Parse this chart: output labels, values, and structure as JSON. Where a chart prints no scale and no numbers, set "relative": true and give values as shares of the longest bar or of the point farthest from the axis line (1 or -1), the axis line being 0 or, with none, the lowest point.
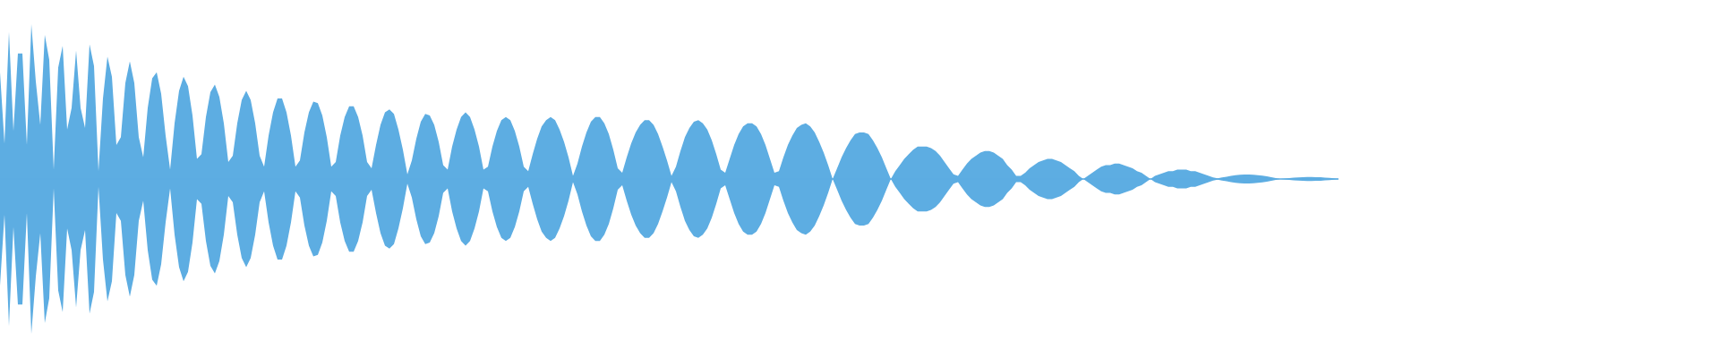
{
  "chart_data": {
    "type": "area",
    "relative": true,
    "ref_lines": [
      {
        "axis": "y",
        "value": 0,
        "color": "#5dade2"
      }
    ],
    "categories": [
      null,
      null,
      null,
      null,
      null,
      null,
      null,
      null,
      null,
      null,
      null,
      null,
      null,
      null,
      null,
      null,
      null,
      null,
      null,
      null,
      null,
      null,
      null,
      null,
      null,
      null,
      null,
      null,
      null,
      null,
      null,
      null,
      null,
      null,
      null,
      null,
      null,
      null,
      null,
      null,
      null,
      null,
      null,
      null,
      null,
      null,
      null,
      null,
      null,
      null,
      null,
      null,
      null,
      null,
      null,
      null,
      null,
      null,
      null,
      null,
      null,
      null,
      null,
      null,
      null,
      null,
      null,
      null,
      null,
      null,
      null,
      null,
      null,
      null,
      null,
      null,
      null,
      null,
      null,
      null,
      null,
      null,
      null,
      null,
      null,
      null,
      null,
      null,
      null,
      null,
      null,
      null,
      null,
      null,
      null,
      null,
      null,
      null,
      null,
      null,
      null,
      null,
      null,
      null,
      null,
      null,
      null,
      null,
      null,
      null,
      null,
      null,
      null,
      null,
      null,
      null,
      null,
      null,
      null,
      null,
      null,
      null,
      null,
      null,
      null,
      null,
      null,
      null,
      null,
      null,
      null,
      null,
      null,
      null,
      null,
      null,
      null,
      null,
      null,
      null,
      null,
      null,
      null,
      null,
      null,
      null,
      null,
      null,
      null,
      null,
      null,
      null,
      null,
      null,
      null,
      null,
      null,
      null,
      null,
      null,
      null,
      null,
      null,
      null,
      null,
      null,
      null,
      null,
      null,
      null,
      null,
      null,
      null,
      null,
      null,
      null,
      null,
      null,
      null,
      null,
      null,
      null,
      null,
      null,
      null,
      null,
      null,
      null,
      null,
      null,
      null,
      null,
      null,
      null,
      null,
      null,
      null,
      null,
      null,
      null,
      null,
      null,
      null,
      null,
      null,
      null,
      null,
      null,
      null,
      null,
      null,
      null,
      null,
      null,
      null,
      null,
      null,
      null,
      null,
      null,
      null,
      null,
      null,
      null,
      null,
      null,
      null,
      null,
      null,
      null,
      null,
      null,
      null,
      null,
      null,
      null,
      null,
      null,
      null,
      null,
      null,
      null,
      null,
      null,
      null,
      null,
      null,
      null,
      null,
      null,
      null,
      null,
      null,
      null,
      null,
      null,
      null,
      null,
      null,
      null,
      null,
      null,
      null,
      null,
      null,
      null,
      null,
      null,
      null,
      null,
      null,
      null,
      null,
      null,
      null,
      null,
      null,
      null,
      null,
      null,
      null,
      null,
      null,
      null,
      null,
      null,
      null,
      null,
      null,
      null,
      null,
      null,
      null,
      null,
      null,
      null,
      null,
      null,
      null,
      null
    ],
    "series": [
      {
        "color": "#5dade2",
        "values": [
          0.69,
          0.23,
          0.95,
          0.31,
          0.81,
          0.81,
          0.22,
          1,
          0.63,
          0.35,
          0.93,
          0.77,
          0.06,
          0.72,
          0.86,
          0.32,
          0.46,
          0.83,
          0.46,
          0.33,
          0.87,
          0.73,
          0.05,
          0.52,
          0.79,
          0.66,
          0.22,
          0.27,
          0.62,
          0.76,
          0.62,
          0.27,
          0.14,
          0.46,
          0.65,
          0.69,
          0.55,
          0.28,
          0.06,
          0.36,
          0.57,
          0.66,
          0.6,
          0.41,
          0.13,
          0.16,
          0.4,
          0.56,
          0.61,
          0.53,
          0.36,
          0.11,
          0.15,
          0.36,
          0.51,
          0.57,
          0.51,
          0.36,
          0.15,
          0.08,
          0.28,
          0.43,
          0.52,
          0.52,
          0.43,
          0.28,
          0.08,
          0.12,
          0.3,
          0.43,
          0.5,
          0.49,
          0.41,
          0.27,
          0.08,
          0.11,
          0.28,
          0.4,
          0.47,
          0.47,
          0.4,
          0.28,
          0.11,
          0.07,
          0.22,
          0.35,
          0.43,
          0.45,
          0.42,
          0.32,
          0.19,
          0.03,
          0.12,
          0.26,
          0.37,
          0.42,
          0.41,
          0.35,
          0.24,
          0.09,
          0.06,
          0.21,
          0.32,
          0.4,
          0.43,
          0.4,
          0.32,
          0.21,
          0.06,
          0.08,
          0.21,
          0.31,
          0.38,
          0.4,
          0.38,
          0.31,
          0.21,
          0.08,
          0.05,
          0.16,
          0.26,
          0.34,
          0.38,
          0.4,
          0.38,
          0.32,
          0.24,
          0.14,
          0.02,
          0.1,
          0.21,
          0.3,
          0.37,
          0.4,
          0.4,
          0.36,
          0.29,
          0.19,
          0.07,
          0.04,
          0.14,
          0.23,
          0.3,
          0.35,
          0.38,
          0.38,
          0.35,
          0.29,
          0.21,
          0.12,
          0.02,
          0.08,
          0.18,
          0.27,
          0.33,
          0.37,
          0.38,
          0.36,
          0.32,
          0.25,
          0.16,
          0.06,
          0.04,
          0.13,
          0.22,
          0.29,
          0.34,
          0.36,
          0.36,
          0.34,
          0.29,
          0.22,
          0.13,
          0.04,
          0.05,
          0.14,
          0.22,
          0.28,
          0.33,
          0.35,
          0.36,
          0.34,
          0.3,
          0.24,
          0.17,
          0.09,
          0,
          0.07,
          0.14,
          0.2,
          0.25,
          0.29,
          0.3,
          0.3,
          0.29,
          0.25,
          0.2,
          0.14,
          0.07,
          0,
          0.05,
          0.09,
          0.13,
          0.16,
          0.19,
          0.21,
          0.21,
          0.21,
          0.2,
          0.18,
          0.15,
          0.11,
          0.07,
          0.03,
          0.02,
          0.06,
          0.1,
          0.13,
          0.15,
          0.17,
          0.18,
          0.18,
          0.17,
          0.15,
          0.13,
          0.09,
          0.06,
          0.02,
          0.02,
          0.04,
          0.07,
          0.09,
          0.11,
          0.12,
          0.13,
          0.13,
          0.12,
          0.11,
          0.09,
          0.07,
          0.05,
          0.02,
          0,
          0.02,
          0.04,
          0.06,
          0.08,
          0.09,
          0.09,
          0.1,
          0.1,
          0.09,
          0.08,
          0.07,
          0.05,
          0.04,
          0.02,
          0,
          0.02,
          0.03,
          0.04,
          0.05,
          0.05,
          0.06,
          0.06,
          0.06,
          0.05,
          0.05,
          0.04,
          0.03,
          0.02,
          0.01,
          0.004,
          0.01,
          0.015,
          0.02,
          0.024,
          0.027,
          0.029,
          0.029,
          0.028,
          0.025,
          0.022,
          0.017,
          0.012,
          0.006,
          0,
          0.003,
          0.006,
          0.008,
          0.01,
          0.012,
          0.013,
          0.013,
          0.012,
          0.011,
          0.009,
          0.007,
          0.004,
          0.001
        ]
      },
      {
        "color": "#5dade2",
        "values": [
          -0.69,
          -0.23,
          -0.95,
          -0.31,
          -0.81,
          -0.81,
          -0.22,
          -1,
          -0.63,
          -0.35,
          -0.93,
          -0.77,
          -0.06,
          -0.72,
          -0.86,
          -0.32,
          -0.46,
          -0.83,
          -0.46,
          -0.33,
          -0.87,
          -0.73,
          -0.05,
          -0.52,
          -0.79,
          -0.66,
          -0.22,
          -0.27,
          -0.62,
          -0.76,
          -0.62,
          -0.27,
          -0.14,
          -0.46,
          -0.65,
          -0.69,
          -0.55,
          -0.28,
          -0.06,
          -0.36,
          -0.57,
          -0.66,
          -0.6,
          -0.41,
          -0.13,
          -0.16,
          -0.4,
          -0.56,
          -0.61,
          -0.53,
          -0.36,
          -0.11,
          -0.15,
          -0.36,
          -0.51,
          -0.57,
          -0.51,
          -0.36,
          -0.15,
          -0.08,
          -0.28,
          -0.43,
          -0.52,
          -0.52,
          -0.43,
          -0.28,
          -0.08,
          -0.12,
          -0.3,
          -0.43,
          -0.5,
          -0.49,
          -0.41,
          -0.27,
          -0.08,
          -0.11,
          -0.28,
          -0.4,
          -0.47,
          -0.47,
          -0.4,
          -0.28,
          -0.11,
          -0.07,
          -0.22,
          -0.35,
          -0.43,
          -0.45,
          -0.42,
          -0.32,
          -0.19,
          -0.03,
          -0.12,
          -0.26,
          -0.37,
          -0.42,
          -0.41,
          -0.35,
          -0.24,
          -0.09,
          -0.06,
          -0.21,
          -0.32,
          -0.4,
          -0.43,
          -0.4,
          -0.32,
          -0.21,
          -0.06,
          -0.08,
          -0.21,
          -0.31,
          -0.38,
          -0.4,
          -0.38,
          -0.31,
          -0.21,
          -0.08,
          -0.05,
          -0.16,
          -0.26,
          -0.34,
          -0.38,
          -0.4,
          -0.38,
          -0.32,
          -0.24,
          -0.14,
          -0.02,
          -0.1,
          -0.21,
          -0.3,
          -0.37,
          -0.4,
          -0.4,
          -0.36,
          -0.29,
          -0.19,
          -0.07,
          -0.04,
          -0.14,
          -0.23,
          -0.3,
          -0.35,
          -0.38,
          -0.38,
          -0.35,
          -0.29,
          -0.21,
          -0.12,
          -0.02,
          -0.08,
          -0.18,
          -0.27,
          -0.33,
          -0.37,
          -0.38,
          -0.36,
          -0.32,
          -0.25,
          -0.16,
          -0.06,
          -0.04,
          -0.13,
          -0.22,
          -0.29,
          -0.34,
          -0.36,
          -0.36,
          -0.34,
          -0.29,
          -0.22,
          -0.13,
          -0.04,
          -0.05,
          -0.14,
          -0.22,
          -0.28,
          -0.33,
          -0.35,
          -0.36,
          -0.34,
          -0.3,
          -0.24,
          -0.17,
          -0.09,
          0,
          -0.07,
          -0.14,
          -0.2,
          -0.25,
          -0.29,
          -0.3,
          -0.3,
          -0.29,
          -0.25,
          -0.2,
          -0.14,
          -0.07,
          0,
          -0.05,
          -0.09,
          -0.13,
          -0.16,
          -0.19,
          -0.21,
          -0.21,
          -0.21,
          -0.2,
          -0.18,
          -0.15,
          -0.11,
          -0.07,
          -0.03,
          -0.02,
          -0.06,
          -0.1,
          -0.13,
          -0.15,
          -0.17,
          -0.18,
          -0.18,
          -0.17,
          -0.15,
          -0.13,
          -0.09,
          -0.06,
          -0.02,
          -0.02,
          -0.04,
          -0.07,
          -0.09,
          -0.11,
          -0.12,
          -0.13,
          -0.13,
          -0.12,
          -0.11,
          -0.09,
          -0.07,
          -0.05,
          -0.02,
          0,
          -0.02,
          -0.04,
          -0.06,
          -0.08,
          -0.09,
          -0.09,
          -0.1,
          -0.1,
          -0.09,
          -0.08,
          -0.07,
          -0.05,
          -0.04,
          -0.02,
          0,
          -0.02,
          -0.03,
          -0.04,
          -0.05,
          -0.05,
          -0.06,
          -0.06,
          -0.06,
          -0.05,
          -0.05,
          -0.04,
          -0.03,
          -0.02,
          -0.01,
          -0.004,
          -0.01,
          -0.015,
          -0.02,
          -0.024,
          -0.027,
          -0.029,
          -0.029,
          -0.028,
          -0.025,
          -0.022,
          -0.017,
          -0.012,
          -0.006,
          0,
          -0.003,
          -0.006,
          -0.008,
          -0.01,
          -0.012,
          -0.013,
          -0.013,
          -0.012,
          -0.011,
          -0.009,
          -0.007,
          -0.004,
          -0.001
        ]
      }
    ]
  }
}
